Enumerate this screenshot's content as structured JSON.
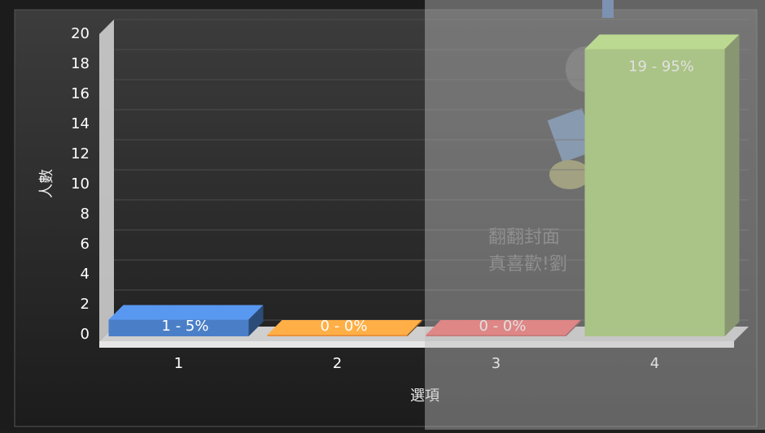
{
  "chart_data": {
    "type": "bar3d",
    "y_label": "人數",
    "x_label": "選項",
    "categories": [
      "1",
      "2",
      "3",
      "4"
    ],
    "values": [
      1,
      0,
      0,
      19
    ],
    "value_labels": [
      "1 - 5%",
      "0 - 0%",
      "0 - 0%",
      "19 - 95%"
    ],
    "colors": [
      "#4a7fc8",
      "#e8923a",
      "#d24a4a",
      "#9cc85a"
    ],
    "ylim": [
      0,
      20
    ],
    "yticks": [
      0,
      2,
      4,
      6,
      8,
      10,
      12,
      14,
      16,
      18,
      20
    ],
    "grid": true
  },
  "background_texts": [
    "翻翻封面",
    "真喜歡!劉"
  ]
}
